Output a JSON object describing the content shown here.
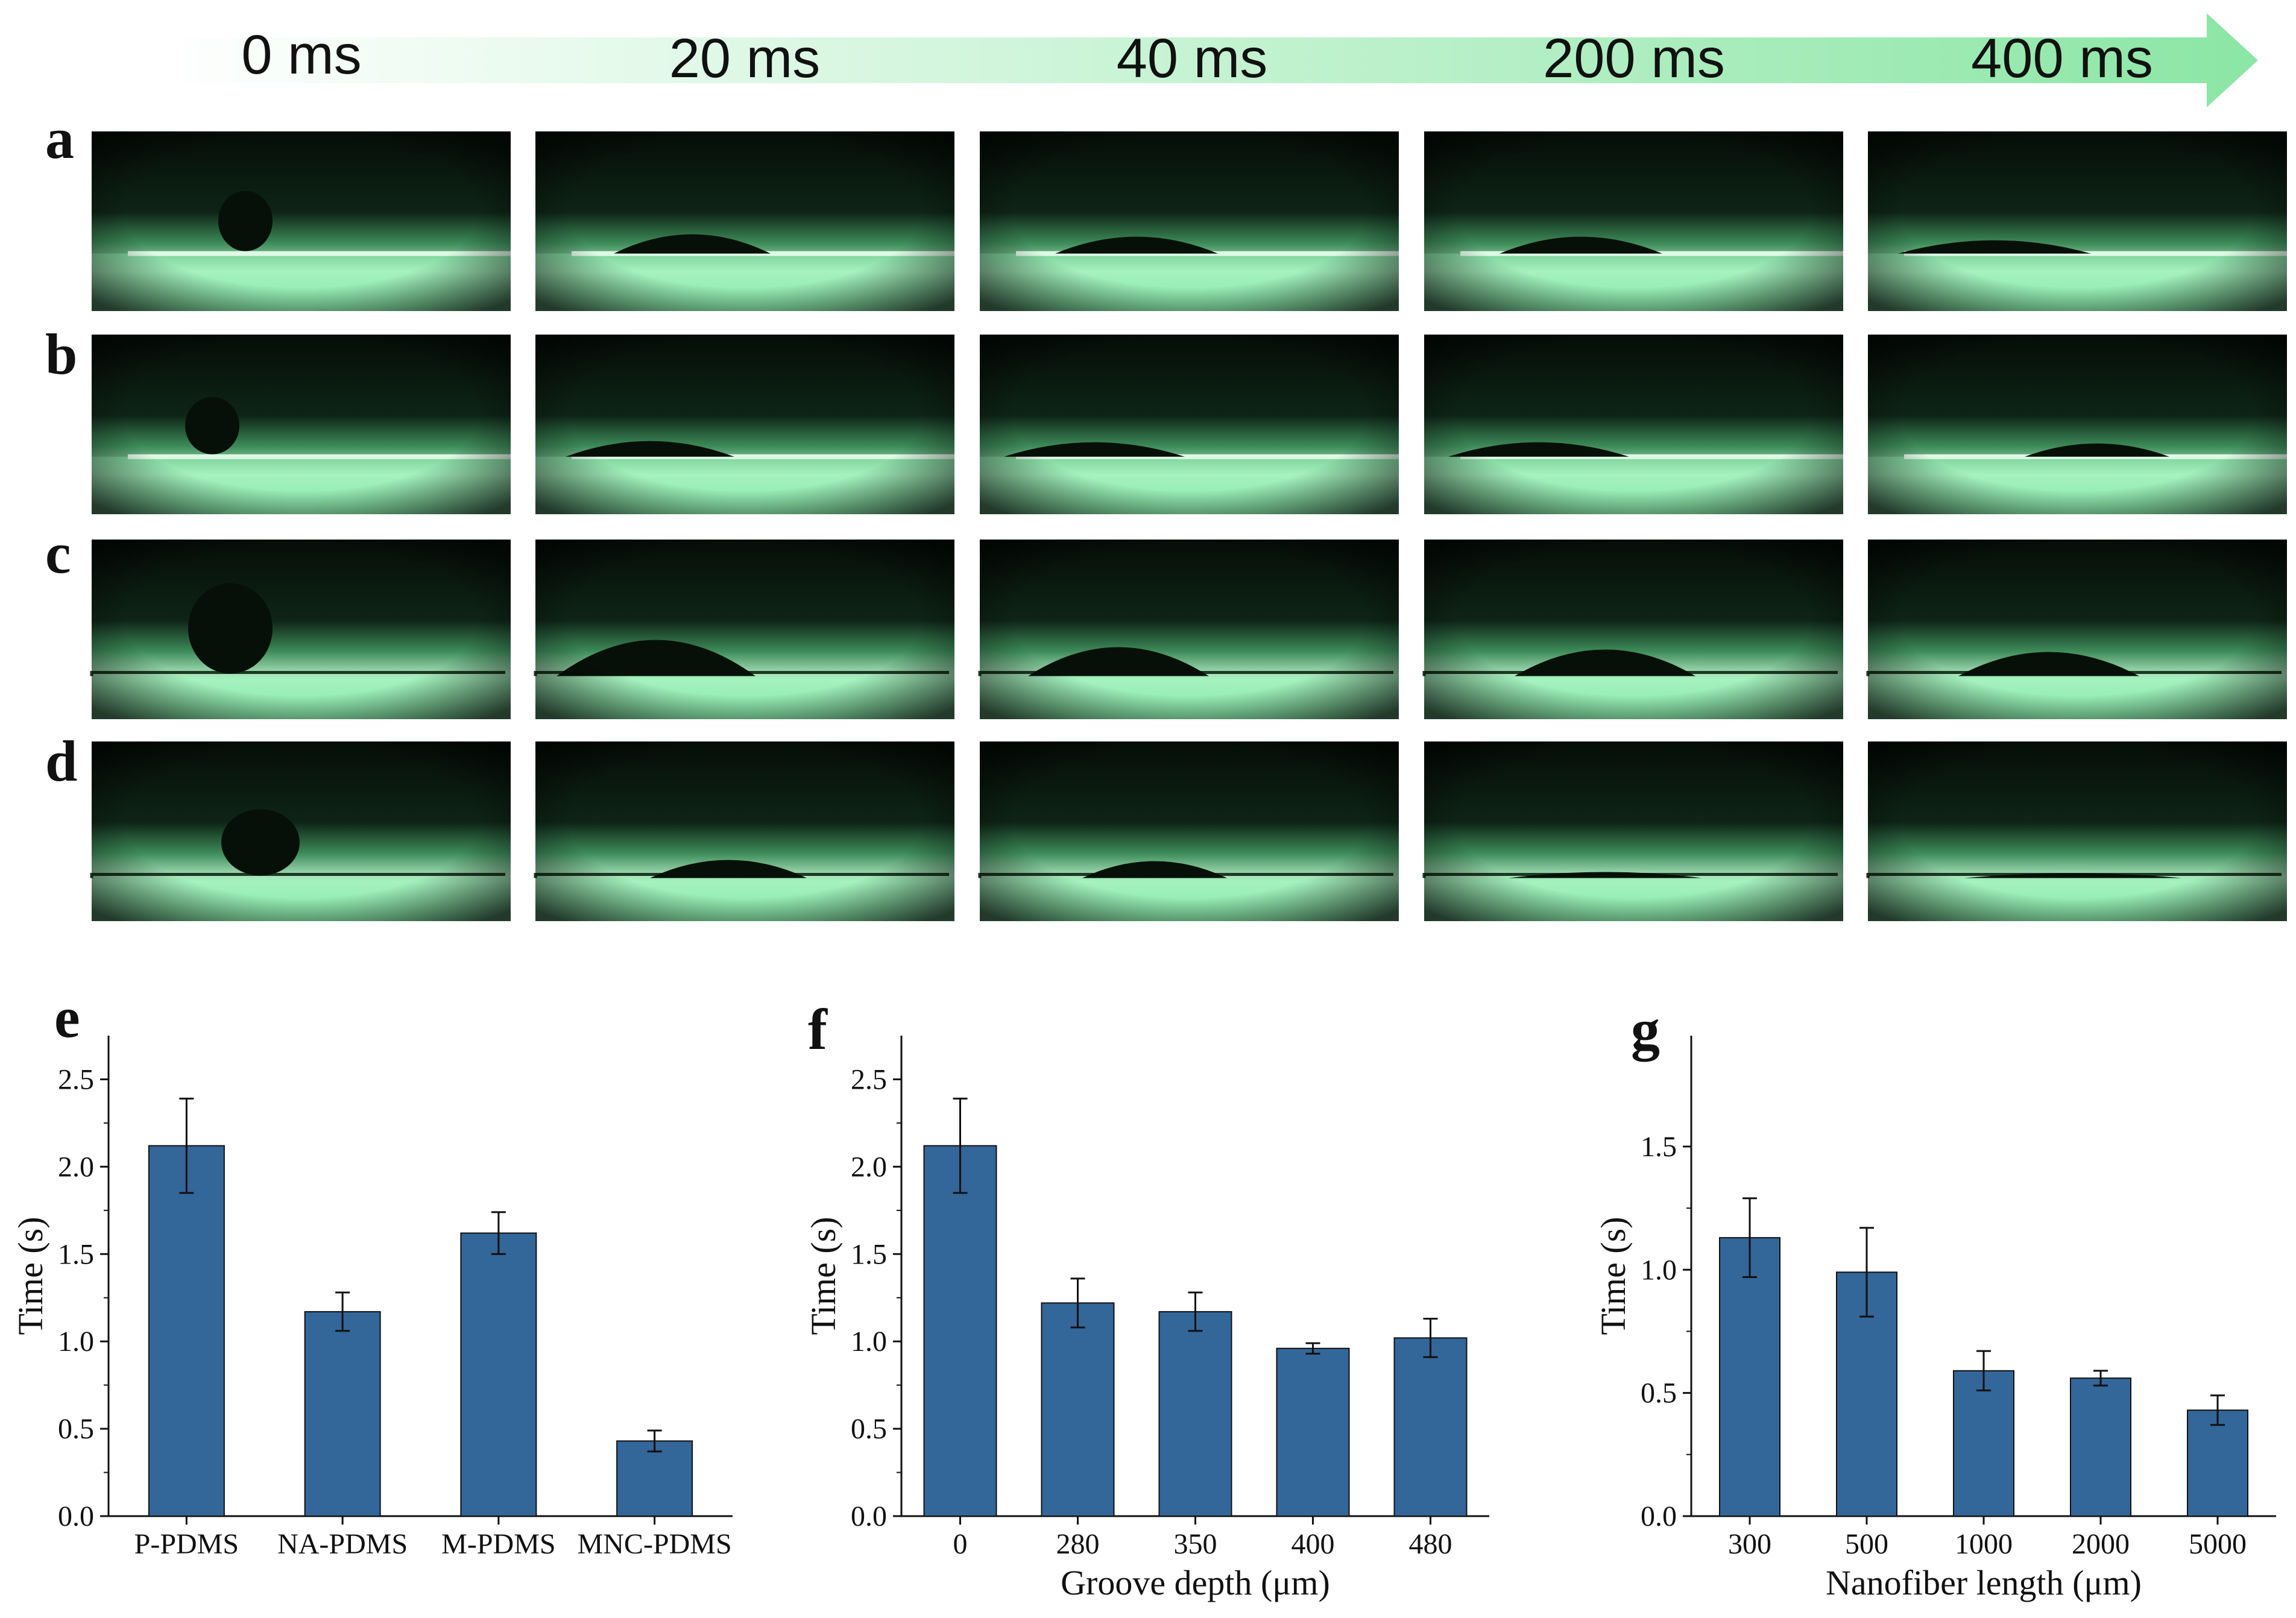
{
  "timeline": {
    "labels": [
      "0 ms",
      "20 ms",
      "40 ms",
      "200 ms",
      "400 ms"
    ],
    "gradient_start": "#ffffff",
    "gradient_end": "#8be6a5"
  },
  "image_panels": {
    "row_labels": [
      "a",
      "b",
      "c",
      "d"
    ],
    "background_color": "#0a1a10",
    "substrate_color": "#8fefb0"
  },
  "chart_panel_labels": [
    "e",
    "f",
    "g"
  ],
  "bar_color": "#336699",
  "chart_data": [
    {
      "type": "bar",
      "panel": "e",
      "categories": [
        "P-PDMS",
        "NA-PDMS",
        "M-PDMS",
        "MNC-PDMS"
      ],
      "values": [
        2.12,
        1.17,
        1.62,
        0.43
      ],
      "errors": [
        0.27,
        0.11,
        0.12,
        0.06
      ],
      "xlabel": "",
      "ylabel": "Time (s)",
      "ylim": [
        0,
        2.75
      ],
      "yticks": [
        0.0,
        0.5,
        1.0,
        1.5,
        2.0,
        2.5
      ],
      "ytick_labels": [
        "0.0",
        "0.5",
        "1.0",
        "1.5",
        "2.0",
        "2.5"
      ]
    },
    {
      "type": "bar",
      "panel": "f",
      "categories": [
        "0",
        "280",
        "350",
        "400",
        "480"
      ],
      "values": [
        2.12,
        1.22,
        1.17,
        0.96,
        1.02
      ],
      "errors": [
        0.27,
        0.14,
        0.11,
        0.03,
        0.11
      ],
      "xlabel": "Groove depth (μm)",
      "ylabel": "Time (s)",
      "ylim": [
        0,
        2.75
      ],
      "yticks": [
        0.0,
        0.5,
        1.0,
        1.5,
        2.0,
        2.5
      ],
      "ytick_labels": [
        "0.0",
        "0.5",
        "1.0",
        "1.5",
        "2.0",
        "2.5"
      ]
    },
    {
      "type": "bar",
      "panel": "g",
      "categories": [
        "300",
        "500",
        "1000",
        "2000",
        "5000"
      ],
      "values": [
        1.13,
        0.99,
        0.59,
        0.56,
        0.43
      ],
      "errors": [
        0.16,
        0.18,
        0.08,
        0.03,
        0.06
      ],
      "xlabel": "Nanofiber length (μm)",
      "ylabel": "Time (s)",
      "ylim": [
        0,
        1.95
      ],
      "yticks": [
        0.0,
        0.5,
        1.0,
        1.5
      ],
      "ytick_labels": [
        "0.0",
        "0.5",
        "1.0",
        "1.5"
      ]
    }
  ]
}
